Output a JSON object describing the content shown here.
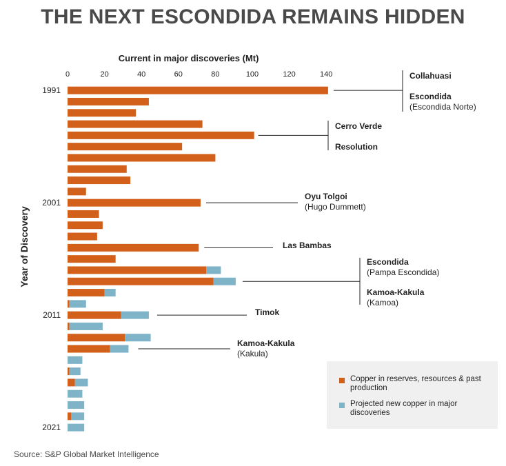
{
  "title": "THE NEXT ESCONDIDA REMAINS HIDDEN",
  "source": "Source: S&P Global Market Intelligence",
  "colors": {
    "copper": "#d2601a",
    "projected": "#7fb3c8",
    "text": "#222222",
    "title": "#4a4a4a",
    "legend_bg": "#f0f0f0"
  },
  "legend": [
    {
      "label": "Copper in reserves, resources & past production",
      "color_key": "copper"
    },
    {
      "label": "Projected new copper in major discoveries",
      "color_key": "projected"
    }
  ],
  "chart_data": {
    "type": "bar",
    "orientation": "horizontal",
    "stacked": true,
    "xlabel": "Current in major discoveries (Mt)",
    "ylabel": "Year of Discovery",
    "xlim": [
      0,
      140
    ],
    "xticks": [
      0,
      20,
      40,
      60,
      80,
      100,
      120,
      140
    ],
    "categories": [
      1991,
      1992,
      1993,
      1994,
      1995,
      1996,
      1997,
      1998,
      1999,
      2000,
      2001,
      2002,
      2003,
      2004,
      2005,
      2006,
      2007,
      2008,
      2009,
      2010,
      2011,
      2012,
      2013,
      2014,
      2015,
      2016,
      2017,
      2018,
      2019,
      2020,
      2021
    ],
    "ytick_labels": [
      {
        "year": 1991,
        "label": "1991"
      },
      {
        "year": 2001,
        "label": "2001"
      },
      {
        "year": 2011,
        "label": "2011"
      },
      {
        "year": 2021,
        "label": "2021"
      }
    ],
    "series": [
      {
        "name": "Copper in reserves, resources & past production",
        "values": [
          141,
          44,
          37,
          73,
          101,
          62,
          80,
          32,
          34,
          10,
          72,
          17,
          19,
          16,
          71,
          26,
          75,
          79,
          20,
          1,
          29,
          1,
          31,
          23,
          0,
          1,
          4,
          0,
          0,
          2,
          0
        ]
      },
      {
        "name": "Projected new copper in major discoveries",
        "values": [
          0,
          0,
          0,
          0,
          0,
          0,
          0,
          0,
          0,
          0,
          0,
          0,
          0,
          0,
          0,
          0,
          8,
          12,
          6,
          9,
          15,
          18,
          14,
          10,
          8,
          6,
          7,
          8,
          9,
          7,
          9
        ]
      }
    ],
    "annotations": [
      {
        "label": "Collahuasi",
        "sub": "",
        "year": 1991
      },
      {
        "label": "Escondida",
        "sub": "(Escondida Norte)",
        "year": 1991
      },
      {
        "label": "Cerro Verde",
        "sub": "",
        "year": 1995
      },
      {
        "label": "Resolution",
        "sub": "",
        "year": 1995
      },
      {
        "label": "Oyu Tolgoi",
        "sub": "(Hugo Dummett)",
        "year": 2001
      },
      {
        "label": "Las Bambas",
        "sub": "",
        "year": 2005
      },
      {
        "label": "Escondida",
        "sub": "(Pampa Escondida)",
        "year": 2008
      },
      {
        "label": "Kamoa-Kakula",
        "sub": "(Kamoa)",
        "year": 2008
      },
      {
        "label": "Timok",
        "sub": "",
        "year": 2011
      },
      {
        "label": "Kamoa-Kakula",
        "sub": "(Kakula)",
        "year": 2014
      }
    ]
  }
}
